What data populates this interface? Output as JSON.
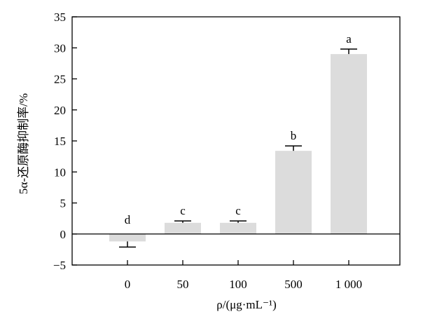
{
  "chart_data": {
    "type": "bar",
    "categories": [
      "0",
      "50",
      "100",
      "500",
      "1 000"
    ],
    "values": [
      -1.2,
      1.8,
      1.8,
      13.4,
      29.0
    ],
    "errors": [
      0.9,
      0.3,
      0.3,
      0.8,
      0.8
    ],
    "significance": [
      "d",
      "c",
      "c",
      "b",
      "a"
    ],
    "ylabel": "5α-还原酶抑制率/%",
    "xlabel": "ρ/(μg·mL⁻¹)",
    "ylim": [
      -5,
      35
    ],
    "yticks": [
      "−5",
      "0",
      "5",
      "10",
      "15",
      "20",
      "25",
      "30",
      "35"
    ],
    "ytick_values": [
      -5,
      0,
      5,
      10,
      15,
      20,
      25,
      30,
      35
    ],
    "grid": false,
    "bar_color": "#dcdcdc"
  }
}
